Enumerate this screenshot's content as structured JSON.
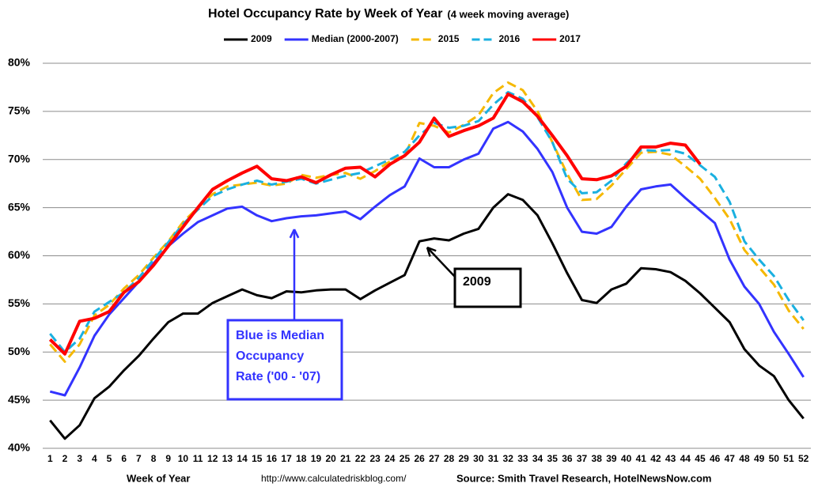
{
  "chart_data": {
    "type": "line",
    "title": "Hotel Occupancy Rate by  Week of Year",
    "subtitle": "(4 week moving average)",
    "x_label": "Week of Year",
    "url": "http://www.calculatedriskblog.com/",
    "source": "Source: Smith Travel Research, HotelNewsNow.com",
    "categories": [
      "1",
      "2",
      "3",
      "4",
      "5",
      "6",
      "7",
      "8",
      "9",
      "10",
      "11",
      "12",
      "13",
      "14",
      "15",
      "16",
      "17",
      "18",
      "19",
      "20",
      "21",
      "22",
      "23",
      "24",
      "25",
      "26",
      "27",
      "28",
      "29",
      "30",
      "31",
      "32",
      "33",
      "34",
      "35",
      "36",
      "37",
      "38",
      "39",
      "40",
      "41",
      "42",
      "43",
      "44",
      "45",
      "46",
      "47",
      "48",
      "49",
      "50",
      "51",
      "52"
    ],
    "ylim": [
      40,
      80
    ],
    "yticks": [
      {
        "value": 40,
        "label": "40%"
      },
      {
        "value": 45,
        "label": "45%"
      },
      {
        "value": 50,
        "label": "50%"
      },
      {
        "value": 55,
        "label": "55%"
      },
      {
        "value": 60,
        "label": "60%"
      },
      {
        "value": 65,
        "label": "65%"
      },
      {
        "value": 70,
        "label": "70%"
      },
      {
        "value": 75,
        "label": "75%"
      },
      {
        "value": 80,
        "label": "80%"
      }
    ],
    "grid": true,
    "legend": "top",
    "series": [
      {
        "name": "2009",
        "color": "#000000",
        "dashed": false,
        "values": [
          42.9,
          41.0,
          42.4,
          45.2,
          46.4,
          48.1,
          49.6,
          51.4,
          53.1,
          54.0,
          54.0,
          55.1,
          55.8,
          56.5,
          55.9,
          55.6,
          56.3,
          56.2,
          56.4,
          56.5,
          56.5,
          55.5,
          56.4,
          57.2,
          58.0,
          61.5,
          61.8,
          61.6,
          62.3,
          62.8,
          65.0,
          66.4,
          65.8,
          64.2,
          61.3,
          58.2,
          55.4,
          55.1,
          56.5,
          57.1,
          58.7,
          58.6,
          58.3,
          57.4,
          56.1,
          54.6,
          53.1,
          50.3,
          48.6,
          47.5,
          45.0,
          43.1
        ]
      },
      {
        "name": "Median (2000-2007)",
        "color": "#3333ff",
        "dashed": false,
        "values": [
          45.9,
          45.5,
          48.4,
          51.7,
          53.9,
          55.6,
          57.3,
          59.2,
          61.0,
          62.3,
          63.5,
          64.2,
          64.9,
          65.1,
          64.2,
          63.6,
          63.9,
          64.1,
          64.2,
          64.4,
          64.6,
          63.8,
          65.1,
          66.3,
          67.2,
          70.1,
          69.2,
          69.2,
          70.0,
          70.6,
          73.2,
          73.9,
          72.9,
          71.1,
          68.7,
          65.0,
          62.5,
          62.3,
          63.0,
          65.1,
          66.9,
          67.2,
          67.4,
          66.0,
          64.7,
          63.4,
          59.6,
          56.8,
          55.0,
          52.1,
          49.8,
          47.4
        ]
      },
      {
        "name": "2015",
        "color": "#f5b800",
        "dashed": true,
        "values": [
          50.8,
          49.0,
          50.8,
          53.8,
          54.9,
          56.6,
          58.0,
          59.8,
          61.5,
          63.5,
          65.0,
          66.4,
          67.2,
          67.4,
          67.6,
          67.3,
          67.5,
          68.4,
          68.1,
          68.4,
          68.6,
          68.0,
          68.8,
          69.8,
          70.4,
          73.8,
          73.5,
          72.8,
          73.6,
          74.6,
          76.9,
          78.0,
          77.2,
          75.0,
          71.8,
          68.5,
          65.8,
          65.9,
          67.3,
          69.0,
          70.7,
          70.8,
          70.5,
          69.3,
          68.0,
          66.0,
          63.8,
          60.6,
          58.8,
          57.0,
          54.3,
          52.4
        ]
      },
      {
        "name": "2016",
        "color": "#1ab0e0",
        "dashed": true,
        "values": [
          51.9,
          50.0,
          51.4,
          54.2,
          55.2,
          56.2,
          57.7,
          59.6,
          61.4,
          63.3,
          64.8,
          66.2,
          66.9,
          67.4,
          67.8,
          67.4,
          67.7,
          68.0,
          67.5,
          67.9,
          68.3,
          68.6,
          69.3,
          70.0,
          70.8,
          72.5,
          73.8,
          73.3,
          73.5,
          74.0,
          75.7,
          77.0,
          76.3,
          74.4,
          71.8,
          68.0,
          66.5,
          66.6,
          67.8,
          69.6,
          71.0,
          70.9,
          71.0,
          70.6,
          69.4,
          68.2,
          65.6,
          61.5,
          59.6,
          57.9,
          55.4,
          53.3
        ]
      },
      {
        "name": "2017",
        "color": "#ff0000",
        "dashed": false,
        "values": [
          51.3,
          49.8,
          53.2,
          53.5,
          54.2,
          56.2,
          57.3,
          59.0,
          61.0,
          63.0,
          65.0,
          66.9,
          67.8,
          68.6,
          69.3,
          68.0,
          67.8,
          68.2,
          67.6,
          68.4,
          69.1,
          69.2,
          68.2,
          69.5,
          70.4,
          71.8,
          74.3,
          72.4,
          73.0,
          73.5,
          74.3,
          76.8,
          76.0,
          74.5,
          72.5,
          70.4,
          68.0,
          67.9,
          68.3,
          69.3,
          71.3,
          71.3,
          71.7,
          71.5,
          69.5,
          null,
          null,
          null,
          null,
          null,
          null,
          null
        ]
      }
    ],
    "annotations": [
      {
        "lines": [
          "2009"
        ],
        "color": "#000000"
      },
      {
        "lines": [
          "Blue is Median",
          "Occupancy",
          "Rate ('00 - '07)"
        ],
        "color": "#3333ff"
      }
    ]
  }
}
